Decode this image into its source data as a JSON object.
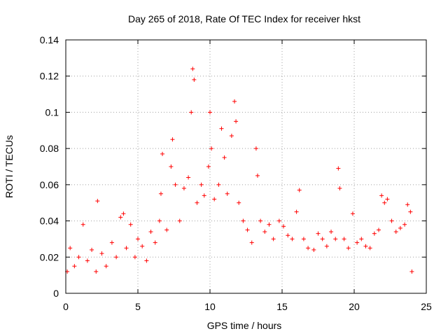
{
  "chart_data": {
    "type": "scatter",
    "title": "Day 265 of 2018, Rate Of TEC Index for receiver hkst",
    "xlabel": "GPS time / hours",
    "ylabel": "ROTI / TECUs",
    "xlim": [
      0,
      25
    ],
    "ylim": [
      0,
      0.14
    ],
    "xticks": [
      "0",
      "5",
      "10",
      "15",
      "20",
      "25"
    ],
    "yticks": [
      "0",
      "0.02",
      "0.04",
      "0.06",
      "0.08",
      "0.1",
      "0.12",
      "0.14"
    ],
    "grid": true,
    "marker": "plus",
    "color": "#ff0000",
    "series": [
      {
        "values": [
          [
            0.1,
            0.012
          ],
          [
            0.3,
            0.025
          ],
          [
            0.6,
            0.015
          ],
          [
            0.9,
            0.02
          ],
          [
            1.2,
            0.038
          ],
          [
            1.5,
            0.018
          ],
          [
            1.8,
            0.024
          ],
          [
            2.1,
            0.012
          ],
          [
            2.2,
            0.051
          ],
          [
            2.5,
            0.022
          ],
          [
            2.8,
            0.015
          ],
          [
            3.2,
            0.028
          ],
          [
            3.5,
            0.02
          ],
          [
            3.8,
            0.042
          ],
          [
            4.0,
            0.044
          ],
          [
            4.2,
            0.025
          ],
          [
            4.5,
            0.038
          ],
          [
            4.8,
            0.02
          ],
          [
            5.0,
            0.03
          ],
          [
            5.3,
            0.026
          ],
          [
            5.6,
            0.018
          ],
          [
            5.9,
            0.034
          ],
          [
            6.2,
            0.028
          ],
          [
            6.5,
            0.04
          ],
          [
            6.6,
            0.055
          ],
          [
            6.7,
            0.077
          ],
          [
            7.0,
            0.035
          ],
          [
            7.3,
            0.07
          ],
          [
            7.4,
            0.085
          ],
          [
            7.6,
            0.06
          ],
          [
            7.9,
            0.04
          ],
          [
            8.2,
            0.058
          ],
          [
            8.5,
            0.064
          ],
          [
            8.7,
            0.1
          ],
          [
            8.8,
            0.124
          ],
          [
            8.9,
            0.118
          ],
          [
            9.1,
            0.05
          ],
          [
            9.4,
            0.06
          ],
          [
            9.6,
            0.054
          ],
          [
            9.9,
            0.07
          ],
          [
            10.0,
            0.1
          ],
          [
            10.1,
            0.08
          ],
          [
            10.3,
            0.052
          ],
          [
            10.6,
            0.06
          ],
          [
            10.8,
            0.091
          ],
          [
            11.0,
            0.075
          ],
          [
            11.2,
            0.055
          ],
          [
            11.5,
            0.087
          ],
          [
            11.7,
            0.106
          ],
          [
            11.8,
            0.095
          ],
          [
            12.0,
            0.05
          ],
          [
            12.3,
            0.04
          ],
          [
            12.6,
            0.035
          ],
          [
            12.9,
            0.028
          ],
          [
            13.2,
            0.08
          ],
          [
            13.3,
            0.065
          ],
          [
            13.5,
            0.04
          ],
          [
            13.8,
            0.034
          ],
          [
            14.1,
            0.038
          ],
          [
            14.4,
            0.03
          ],
          [
            14.8,
            0.04
          ],
          [
            15.1,
            0.037
          ],
          [
            15.4,
            0.032
          ],
          [
            15.7,
            0.03
          ],
          [
            16.0,
            0.045
          ],
          [
            16.2,
            0.057
          ],
          [
            16.5,
            0.03
          ],
          [
            16.8,
            0.025
          ],
          [
            17.2,
            0.024
          ],
          [
            17.5,
            0.033
          ],
          [
            17.8,
            0.03
          ],
          [
            18.1,
            0.026
          ],
          [
            18.4,
            0.034
          ],
          [
            18.7,
            0.03
          ],
          [
            18.9,
            0.069
          ],
          [
            19.0,
            0.058
          ],
          [
            19.3,
            0.03
          ],
          [
            19.6,
            0.025
          ],
          [
            19.9,
            0.044
          ],
          [
            20.2,
            0.028
          ],
          [
            20.5,
            0.03
          ],
          [
            20.8,
            0.026
          ],
          [
            21.1,
            0.025
          ],
          [
            21.4,
            0.033
          ],
          [
            21.7,
            0.035
          ],
          [
            21.9,
            0.054
          ],
          [
            22.1,
            0.05
          ],
          [
            22.3,
            0.052
          ],
          [
            22.6,
            0.04
          ],
          [
            22.9,
            0.034
          ],
          [
            23.2,
            0.036
          ],
          [
            23.5,
            0.038
          ],
          [
            23.7,
            0.049
          ],
          [
            23.9,
            0.045
          ],
          [
            24.0,
            0.012
          ]
        ]
      }
    ]
  }
}
